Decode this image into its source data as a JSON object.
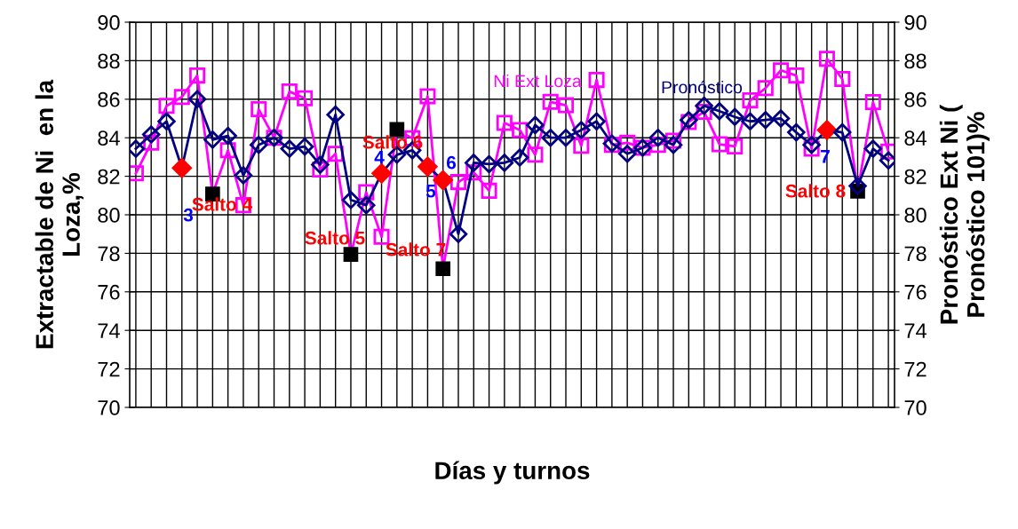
{
  "chart_data": {
    "type": "line",
    "xlabel": "Días y turnos",
    "ylabel": "Extractable de Ni  en la\nLoza,%",
    "y2label": "Pronóstico Ext Ni (\nPronóstico 101)%",
    "categories": [
      null,
      null,
      null,
      null,
      null,
      null,
      null,
      null,
      null,
      null,
      null,
      null,
      null,
      null,
      null,
      null,
      null,
      null,
      null,
      null,
      null,
      null,
      null,
      null,
      null,
      null,
      null,
      null,
      null,
      null,
      null,
      null,
      null,
      null,
      null,
      null,
      null,
      null,
      null,
      null,
      null,
      null,
      null,
      null,
      null,
      null,
      null,
      null,
      null,
      null
    ],
    "series": [
      {
        "name": "Ni Ext Loza",
        "color": "#ff00ff",
        "marker": "square",
        "values": [
          82.15,
          83.74,
          85.66,
          86.12,
          87.23,
          81.08,
          83.35,
          80.5,
          85.48,
          84.0,
          86.4,
          86.05,
          82.35,
          83.17,
          77.94,
          81.17,
          78.86,
          84.43,
          83.97,
          86.15,
          77.2,
          81.7,
          82.2,
          81.25,
          84.77,
          84.4,
          83.12,
          85.86,
          85.69,
          83.58,
          87.0,
          83.63,
          83.74,
          83.48,
          83.63,
          83.85,
          84.82,
          85.35,
          83.66,
          83.55,
          85.94,
          86.58,
          87.5,
          87.23,
          83.43,
          88.1,
          87.05,
          81.23,
          85.85,
          83.28
        ],
        "colors": [
          "#ff00ff",
          "#ff00ff",
          "#ff00ff",
          "#ff00ff",
          "#ff00ff",
          "#000000",
          "#ff00ff",
          "#ff00ff",
          "#ff00ff",
          "#ff00ff",
          "#ff00ff",
          "#ff00ff",
          "#ff00ff",
          "#ff00ff",
          "#000000",
          "#ff00ff",
          "#ff00ff",
          "#000000",
          "#ff00ff",
          "#ff00ff",
          "#000000",
          "#ff00ff",
          "#ff00ff",
          "#ff00ff",
          "#ff00ff",
          "#ff00ff",
          "#ff00ff",
          "#ff00ff",
          "#ff00ff",
          "#ff00ff",
          "#ff00ff",
          "#ff00ff",
          "#ff00ff",
          "#ff00ff",
          "#ff00ff",
          "#ff00ff",
          "#ff00ff",
          "#ff00ff",
          "#ff00ff",
          "#ff00ff",
          "#ff00ff",
          "#ff00ff",
          "#ff00ff",
          "#ff00ff",
          "#ff00ff",
          "#ff00ff",
          "#ff00ff",
          "#000000",
          "#ff00ff",
          "#ff00ff"
        ]
      },
      {
        "name": "Pronóstico",
        "color": "#000080",
        "marker": "diamond",
        "axis": "y2",
        "values": [
          83.43,
          84.17,
          84.85,
          82.43,
          86.0,
          83.9,
          84.1,
          82.05,
          83.63,
          84.0,
          83.43,
          83.54,
          82.6,
          85.2,
          80.77,
          80.5,
          82.15,
          83.12,
          83.35,
          82.5,
          81.8,
          79.0,
          82.7,
          82.63,
          82.7,
          82.97,
          84.66,
          84.0,
          84.0,
          84.4,
          84.85,
          83.7,
          83.17,
          83.48,
          84.0,
          83.63,
          84.92,
          85.66,
          85.38,
          85.08,
          84.85,
          84.92,
          85.0,
          84.28,
          83.63,
          84.4,
          84.28,
          81.5,
          83.43,
          82.82
        ],
        "colors": [
          "#000080",
          "#000080",
          "#000080",
          "#ff0000",
          "#000080",
          "#000080",
          "#000080",
          "#000080",
          "#000080",
          "#000080",
          "#000080",
          "#000080",
          "#000080",
          "#000080",
          "#000080",
          "#000080",
          "#ff0000",
          "#000080",
          "#000080",
          "#ff0000",
          "#ff0000",
          "#000080",
          "#000080",
          "#000080",
          "#000080",
          "#000080",
          "#000080",
          "#000080",
          "#000080",
          "#000080",
          "#000080",
          "#000080",
          "#000080",
          "#000080",
          "#000080",
          "#000080",
          "#000080",
          "#000080",
          "#000080",
          "#000080",
          "#000080",
          "#000080",
          "#000080",
          "#000080",
          "#000080",
          "#ff0000",
          "#000080",
          "#000080",
          "#000080",
          "#000080"
        ]
      }
    ],
    "ylim": [
      70,
      90
    ],
    "yticks": [
      70,
      72,
      74,
      76,
      78,
      80,
      82,
      84,
      86,
      88,
      90
    ],
    "y2lim": [
      70,
      90
    ],
    "y2ticks": [
      70,
      72,
      74,
      76,
      78,
      80,
      82,
      84,
      86,
      88,
      90
    ],
    "grid": true,
    "tick_labels": "y",
    "line_style": "solid",
    "annotations": [
      "3",
      "Salto 4",
      "Salto 5",
      "4",
      "Salto 6",
      "5",
      "6",
      "Salto 7",
      "7",
      "Salto 8"
    ]
  }
}
